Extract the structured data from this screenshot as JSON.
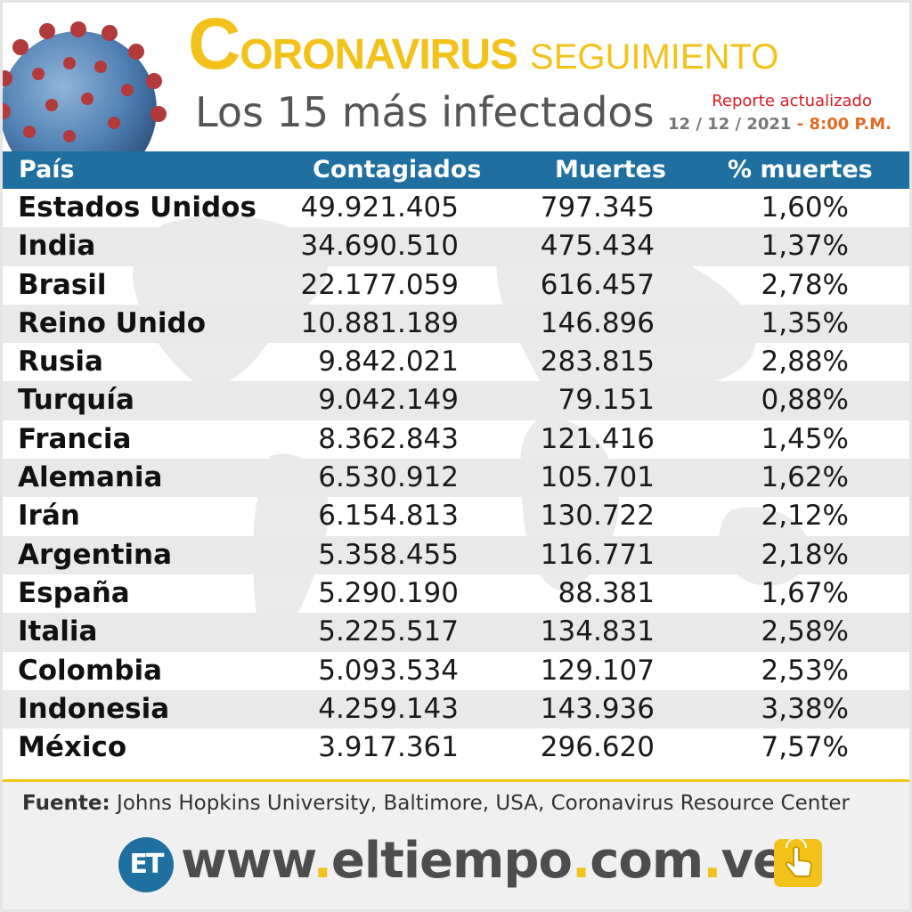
{
  "header": {
    "title_initial": "C",
    "title_rest": "ORONAVIRUS",
    "title_secondary": "SEGUIMIENTO",
    "subtitle": "Los 15 más infectados",
    "report_label": "Reporte actualizado",
    "report_date": "12 / 12 / 2021",
    "report_separator": "-",
    "report_time": "8:00 P.M."
  },
  "colors": {
    "accent_yellow": "#f2c21a",
    "header_blue": "#1f6fa0",
    "report_red": "#d91c24",
    "stripe_gray": "#e9e9e9"
  },
  "chart_data": {
    "type": "table",
    "columns": [
      "País",
      "Contagiados",
      "Muertes",
      "% muertes"
    ],
    "rows": [
      [
        "Estados Unidos",
        "49.921.405",
        "797.345",
        "1,60%"
      ],
      [
        "India",
        "34.690.510",
        "475.434",
        "1,37%"
      ],
      [
        "Brasil",
        "22.177.059",
        "616.457",
        "2,78%"
      ],
      [
        "Reino Unido",
        "10.881.189",
        "146.896",
        "1,35%"
      ],
      [
        "Rusia",
        "9.842.021",
        "283.815",
        "2,88%"
      ],
      [
        "Turquía",
        "9.042.149",
        "79.151",
        "0,88%"
      ],
      [
        "Francia",
        "8.362.843",
        "121.416",
        "1,45%"
      ],
      [
        "Alemania",
        "6.530.912",
        "105.701",
        "1,62%"
      ],
      [
        "Irán",
        "6.154.813",
        "130.722",
        "2,12%"
      ],
      [
        "Argentina",
        "5.358.455",
        "116.771",
        "2,18%"
      ],
      [
        "España",
        "5.290.190",
        "88.381",
        "1,67%"
      ],
      [
        "Italia",
        "5.225.517",
        "134.831",
        "2,58%"
      ],
      [
        "Colombia",
        "5.093.534",
        "129.107",
        "2,53%"
      ],
      [
        "Indonesia",
        "4.259.143",
        "143.936",
        "3,38%"
      ],
      [
        "México",
        "3.917.361",
        "296.620",
        "7,57%"
      ]
    ]
  },
  "footer": {
    "source_label": "Fuente:",
    "source_text": "Johns Hopkins University, Baltimore, USA, Coronavirus Resource Center",
    "logo_text": "ET",
    "site_parts": [
      "www",
      ".",
      "eltiempo",
      ".",
      "com",
      ".",
      "ve"
    ],
    "hand_icon": "pointing-hand-icon"
  }
}
